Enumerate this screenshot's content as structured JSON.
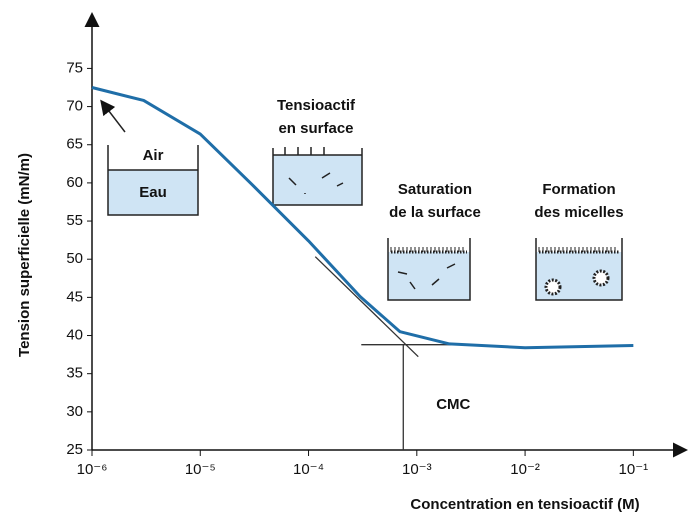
{
  "chart_data": {
    "type": "line",
    "x_label": "Concentration en tensioactif (M)",
    "y_label": "Tension superficielle (mN/m)",
    "log_x": true,
    "xlim": [
      1e-06,
      0.3
    ],
    "ylim": [
      25,
      82
    ],
    "xticks": [
      {
        "value": 1e-06,
        "label": "10⁻⁶"
      },
      {
        "value": 1e-05,
        "label": "10⁻⁵"
      },
      {
        "value": 0.0001,
        "label": "10⁻⁴"
      },
      {
        "value": 0.001,
        "label": "10⁻³"
      },
      {
        "value": 0.01,
        "label": "10⁻²"
      },
      {
        "value": 0.1,
        "label": "10⁻¹"
      }
    ],
    "yticks": [
      25,
      30,
      35,
      40,
      45,
      50,
      55,
      60,
      65,
      70,
      75
    ],
    "x": [
      1e-06,
      3e-06,
      1e-05,
      3e-05,
      0.0001,
      0.0003,
      0.0007,
      0.002,
      0.01,
      0.1
    ],
    "series": [
      {
        "color": "#1f6ea8",
        "values": [
          72.5,
          70.8,
          66.4,
          59.8,
          52.4,
          45.1,
          40.5,
          38.9,
          38.4,
          38.7
        ]
      }
    ],
    "cmc": {
      "label": "CMC",
      "x": 0.00075,
      "y": 38.8
    },
    "annotations": [
      "Air",
      "Eau",
      "Tensioactif",
      "en surface",
      "Saturation",
      "de la surface",
      "Formation",
      "des micelles"
    ]
  }
}
